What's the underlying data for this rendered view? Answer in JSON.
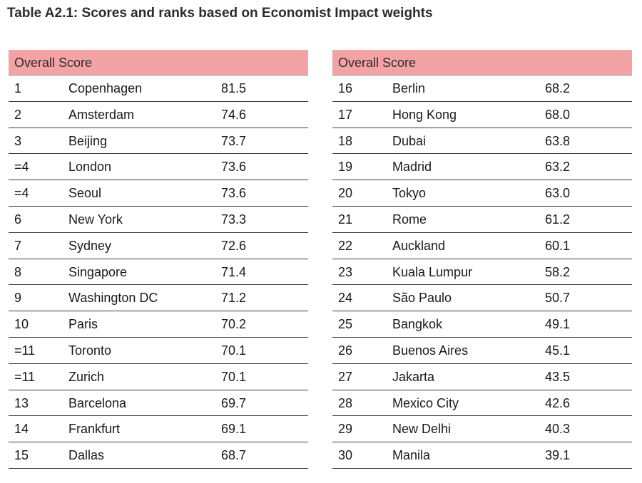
{
  "title": "Table A2.1: Scores and ranks based on Economist Impact weights",
  "tables": [
    {
      "header": "Overall Score",
      "rows": [
        {
          "rank": "1",
          "city": "Copenhagen",
          "score": "81.5"
        },
        {
          "rank": "2",
          "city": "Amsterdam",
          "score": "74.6"
        },
        {
          "rank": "3",
          "city": "Beijing",
          "score": "73.7"
        },
        {
          "rank": "=4",
          "city": "London",
          "score": "73.6"
        },
        {
          "rank": "=4",
          "city": "Seoul",
          "score": "73.6"
        },
        {
          "rank": "6",
          "city": "New York",
          "score": "73.3"
        },
        {
          "rank": "7",
          "city": "Sydney",
          "score": "72.6"
        },
        {
          "rank": "8",
          "city": "Singapore",
          "score": "71.4"
        },
        {
          "rank": "9",
          "city": "Washington DC",
          "score": "71.2"
        },
        {
          "rank": "10",
          "city": "Paris",
          "score": "70.2"
        },
        {
          "rank": "=11",
          "city": "Toronto",
          "score": "70.1"
        },
        {
          "rank": "=11",
          "city": "Zurich",
          "score": "70.1"
        },
        {
          "rank": "13",
          "city": "Barcelona",
          "score": "69.7"
        },
        {
          "rank": "14",
          "city": "Frankfurt",
          "score": "69.1"
        },
        {
          "rank": "15",
          "city": "Dallas",
          "score": "68.7"
        }
      ]
    },
    {
      "header": "Overall Score",
      "rows": [
        {
          "rank": "16",
          "city": "Berlin",
          "score": "68.2"
        },
        {
          "rank": "17",
          "city": "Hong Kong",
          "score": "68.0"
        },
        {
          "rank": "18",
          "city": "Dubai",
          "score": "63.8"
        },
        {
          "rank": "19",
          "city": "Madrid",
          "score": "63.2"
        },
        {
          "rank": "20",
          "city": "Tokyo",
          "score": "63.0"
        },
        {
          "rank": "21",
          "city": "Rome",
          "score": "61.2"
        },
        {
          "rank": "22",
          "city": "Auckland",
          "score": "60.1"
        },
        {
          "rank": "23",
          "city": "Kuala Lumpur",
          "score": "58.2"
        },
        {
          "rank": "24",
          "city": "São Paulo",
          "score": "50.7"
        },
        {
          "rank": "25",
          "city": "Bangkok",
          "score": "49.1"
        },
        {
          "rank": "26",
          "city": "Buenos Aires",
          "score": "45.1"
        },
        {
          "rank": "27",
          "city": "Jakarta",
          "score": "43.5"
        },
        {
          "rank": "28",
          "city": "Mexico City",
          "score": "42.6"
        },
        {
          "rank": "29",
          "city": "New Delhi",
          "score": "40.3"
        },
        {
          "rank": "30",
          "city": "Manila",
          "score": "39.1"
        }
      ]
    }
  ]
}
